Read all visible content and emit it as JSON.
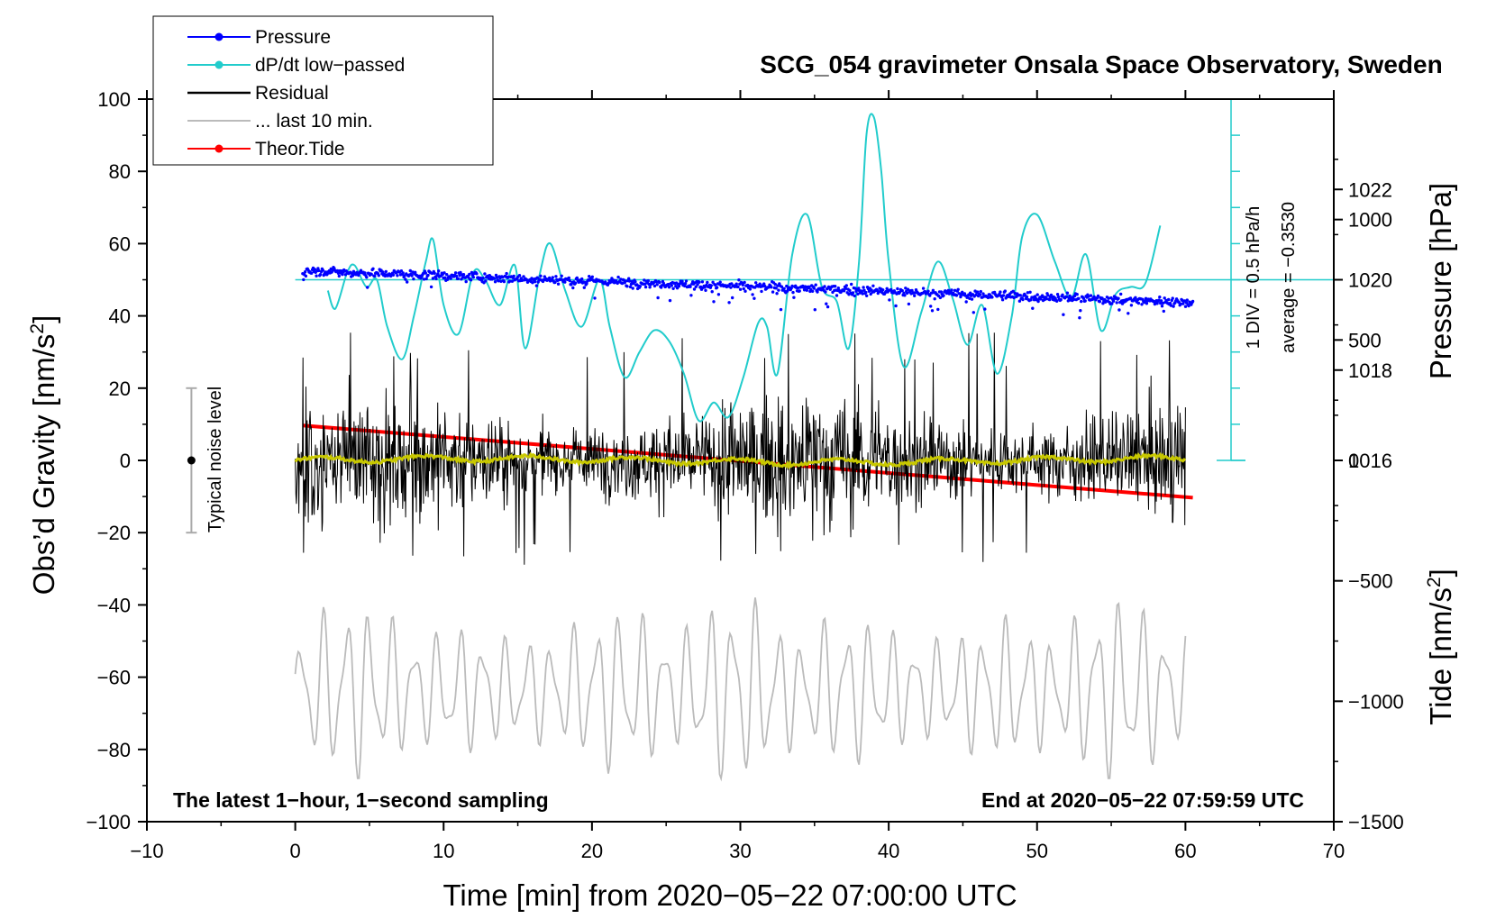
{
  "chart_data": {
    "type": "line",
    "title": "SCG_054 gravimeter Onsala Space Observatory, Sweden",
    "xlabel": "Time [min] from 2020−05−22 07:00:00 UTC",
    "ylabel_left": "Obs’d Gravity [nm/s",
    "ylabel_left_sup": "2",
    "ylabel_left_end": "]",
    "ylabel_pressure": "Pressure [hPa]",
    "ylabel_tide": "Tide [nm/s",
    "ylabel_tide_sup": "2",
    "ylabel_tide_end": "]",
    "xlim": [
      -10,
      70
    ],
    "ylim": [
      -100,
      100
    ],
    "x_ticks": [
      "−10",
      "0",
      "10",
      "20",
      "30",
      "40",
      "50",
      "60",
      "70"
    ],
    "y_ticks": [
      "−100",
      "−80",
      "−60",
      "−40",
      "−20",
      "0",
      "20",
      "40",
      "60",
      "80",
      "100"
    ],
    "pressure_axis": {
      "range": [
        1008,
        1024
      ],
      "ticks": [
        "1016",
        "1018",
        "1020",
        "1022"
      ]
    },
    "tide_axis": {
      "range": [
        -1500,
        1500
      ],
      "ticks": [
        "−1500",
        "−1000",
        "−500",
        "0",
        "500",
        "1000"
      ]
    },
    "annotation_left": "The latest 1−hour, 1−second sampling",
    "annotation_right": "End at 2020−05−22 07:59:59 UTC",
    "noise_label": "Typical noise level",
    "dpdt_scale_label": "1 DIV = 0.5 hPa/h",
    "dpdt_average_label": "average = −0.3530",
    "legend": [
      {
        "label": "Pressure",
        "color": "#0000ff",
        "marker": true
      },
      {
        "label": "dP/dt low−passed",
        "color": "#22cccc",
        "marker": true
      },
      {
        "label": "Residual",
        "color": "#000000",
        "marker": false
      },
      {
        "label": "... last 10 min.",
        "color": "#bbbbbb",
        "marker": false
      },
      {
        "label": "Theor.Tide",
        "color": "#ff0000",
        "marker": true
      }
    ],
    "series": [
      {
        "name": "Pressure",
        "axis": "pressure",
        "color": "#0000ff",
        "x_range": [
          0.5,
          60.5
        ],
        "values_hPa": [
          1020.2,
          1019.5
        ]
      },
      {
        "name": "dP/dt low-passed",
        "axis": "left",
        "color": "#22cccc",
        "x": [
          2.2,
          2.7,
          3.5,
          4.0,
          4.8,
          5.5,
          6.2,
          7.2,
          8.0,
          8.8,
          9.3,
          10.0,
          11.0,
          12.0,
          12.8,
          13.8,
          14.8,
          15.5,
          16.5,
          17.2,
          18.2,
          19.3,
          20.5,
          21.2,
          22.2,
          23.2,
          24.2,
          25.2,
          26.2,
          27.2,
          28.2,
          29.2,
          30.2,
          31.2,
          31.8,
          32.5,
          33.5,
          34.5,
          35.5,
          36.5,
          37.3,
          38.0,
          38.5,
          39.0,
          39.5,
          40.0,
          41.0,
          42.2,
          43.3,
          44.3,
          45.3,
          46.3,
          47.3,
          48.3,
          49.0,
          50.0,
          51.2,
          52.3,
          53.3,
          54.3,
          55.3,
          56.3,
          57.3,
          58.3
        ],
        "values": [
          47,
          42,
          52,
          54,
          48,
          50,
          37,
          28,
          40,
          55,
          61,
          43,
          35,
          52,
          50,
          43,
          54,
          31,
          52,
          60,
          47,
          37,
          50,
          37,
          23,
          30,
          36,
          33,
          24,
          11,
          16,
          12,
          23,
          38,
          37,
          24,
          57,
          68,
          48,
          44,
          31,
          55,
          90,
          95,
          80,
          55,
          26,
          41,
          55,
          45,
          32,
          43,
          24,
          40,
          62,
          68,
          55,
          45,
          57,
          36,
          46,
          48,
          49,
          65
        ]
      },
      {
        "name": "Residual",
        "axis": "left",
        "color": "#000000",
        "x_range": [
          0,
          60
        ],
        "amplitude": [
          -29,
          37
        ]
      },
      {
        "name": "Residual smoothed",
        "axis": "left",
        "color": "#c8c800",
        "x_range": [
          0,
          60
        ],
        "values_approx": [
          -1,
          1
        ]
      },
      {
        "name": "... last 10 min.",
        "axis": "left",
        "color": "#bbbbbb",
        "x_range": [
          0,
          60
        ],
        "values_range": [
          -88,
          -33
        ]
      },
      {
        "name": "Theor.Tide",
        "axis": "tide",
        "color": "#ff0000",
        "x": [
          0.5,
          60.5
        ],
        "values": [
          145,
          -155
        ]
      }
    ]
  }
}
